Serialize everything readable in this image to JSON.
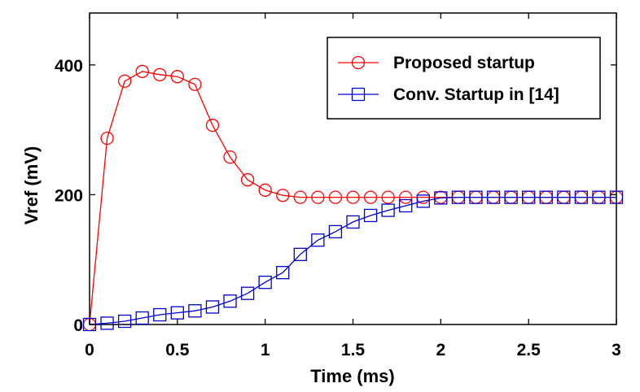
{
  "chart_data": {
    "type": "line",
    "xlabel": "Time (ms)",
    "ylabel": "Vref (mV)",
    "xlim": [
      0,
      3
    ],
    "ylim": [
      0,
      480
    ],
    "xticks": [
      0,
      0.5,
      1,
      1.5,
      2,
      2.5,
      3
    ],
    "xtick_labels": [
      "0",
      "0.5",
      "1",
      "1.5",
      "2",
      "2.5",
      "3"
    ],
    "yticks": [
      0,
      200,
      400
    ],
    "ytick_labels": [
      "0",
      "200",
      "400"
    ],
    "grid": false,
    "legend_position": "top-right",
    "x": [
      0,
      0.1,
      0.2,
      0.3,
      0.4,
      0.5,
      0.6,
      0.7,
      0.8,
      0.9,
      1.0,
      1.1,
      1.2,
      1.3,
      1.4,
      1.5,
      1.6,
      1.7,
      1.8,
      1.9,
      2.0,
      2.1,
      2.2,
      2.3,
      2.4,
      2.5,
      2.6,
      2.7,
      2.8,
      2.9,
      3.0
    ],
    "series": [
      {
        "name": "Proposed startup",
        "color": "#ff0000",
        "marker": "circle",
        "values": [
          0,
          287,
          375,
          390,
          385,
          382,
          370,
          307,
          258,
          223,
          207,
          199,
          196,
          196,
          196,
          196,
          196,
          196,
          196,
          196,
          196,
          196,
          196,
          196,
          196,
          196,
          196,
          196,
          196,
          196,
          196
        ]
      },
      {
        "name": "Conv. Startup in [14]",
        "color": "#0000cc",
        "marker": "square",
        "values": [
          0,
          2,
          5,
          10,
          15,
          18,
          21,
          27,
          36,
          48,
          65,
          80,
          108,
          130,
          143,
          158,
          168,
          176,
          183,
          190,
          195,
          196,
          196,
          196,
          196,
          196,
          196,
          196,
          196,
          196,
          196
        ]
      }
    ]
  }
}
